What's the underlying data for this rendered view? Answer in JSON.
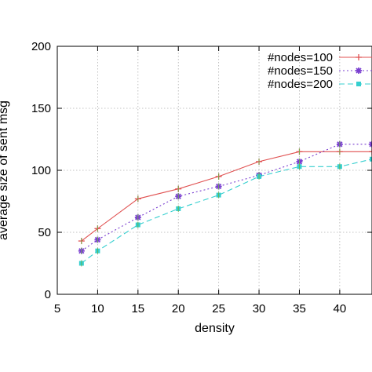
{
  "chart_data": {
    "type": "line",
    "title": "",
    "xlabel": "density",
    "ylabel": "average size of sent msg",
    "xlim": [
      5,
      44
    ],
    "ylim": [
      0,
      200
    ],
    "xticks": [
      5,
      10,
      15,
      20,
      25,
      30,
      35,
      40
    ],
    "yticks": [
      0,
      50,
      100,
      150,
      200
    ],
    "grid": true,
    "legend_position": "top-right",
    "series": [
      {
        "name": "#nodes=100",
        "color": "#e05050",
        "dash": "solid",
        "marker": "plus",
        "x": [
          8,
          10,
          15,
          20,
          25,
          30,
          35,
          40,
          44
        ],
        "y": [
          43,
          53,
          77,
          85,
          95,
          107,
          115,
          115,
          115
        ]
      },
      {
        "name": "#nodes=150",
        "color": "#7a3fd0",
        "dash": "dotted",
        "marker": "star",
        "x": [
          8,
          10,
          15,
          20,
          25,
          30,
          35,
          40,
          44
        ],
        "y": [
          35,
          44,
          62,
          79,
          87,
          96,
          107,
          121,
          121
        ]
      },
      {
        "name": "#nodes=200",
        "color": "#35cfcf",
        "dash": "dashed",
        "marker": "square",
        "x": [
          8,
          10,
          15,
          20,
          25,
          30,
          35,
          40,
          44
        ],
        "y": [
          25,
          35,
          56,
          69,
          80,
          95,
          103,
          103,
          109
        ]
      }
    ]
  }
}
